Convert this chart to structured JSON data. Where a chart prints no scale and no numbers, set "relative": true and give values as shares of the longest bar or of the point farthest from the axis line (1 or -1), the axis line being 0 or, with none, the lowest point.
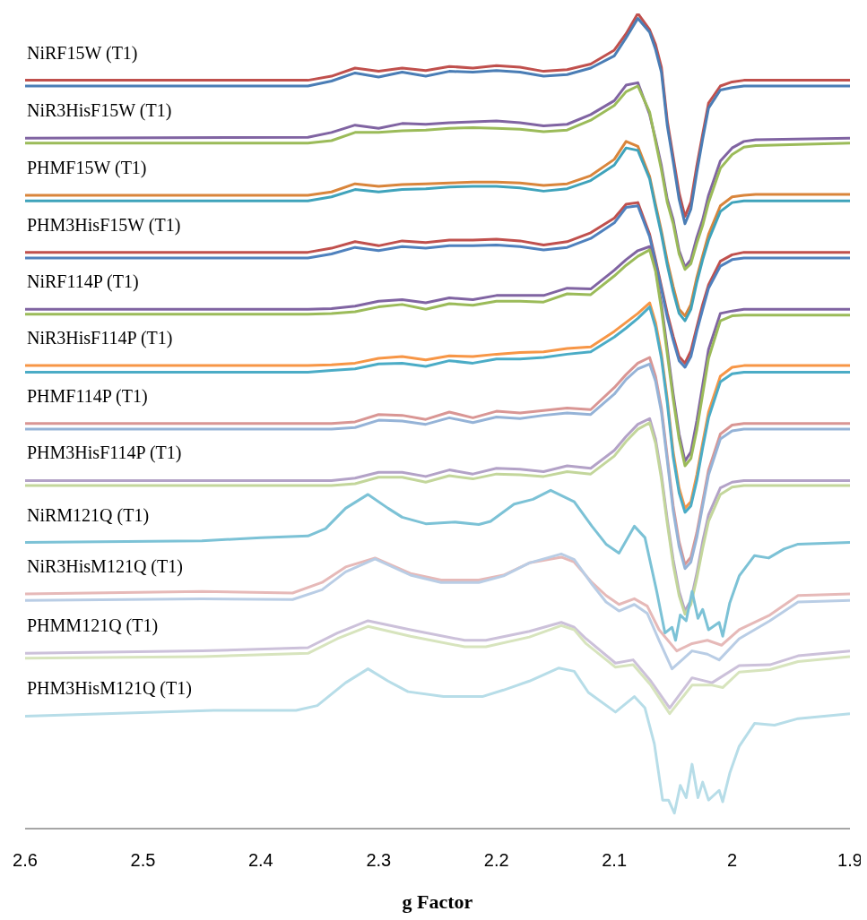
{
  "chart_data": {
    "type": "line",
    "relative": true,
    "xlabel": "g Factor",
    "xlim": [
      2.6,
      1.9
    ],
    "xticks": [
      2.6,
      2.5,
      2.4,
      2.3,
      2.2,
      2.1,
      2,
      1.9
    ],
    "x": [
      2.6,
      2.36,
      2.34,
      2.32,
      2.3,
      2.28,
      2.26,
      2.24,
      2.22,
      2.2,
      2.18,
      2.16,
      2.14,
      2.12,
      2.1,
      2.09,
      2.08,
      2.07,
      2.065,
      2.06,
      2.055,
      2.05,
      2.045,
      2.04,
      2.035,
      2.03,
      2.025,
      2.02,
      2.01,
      2.0,
      1.99,
      1.98,
      1.9
    ],
    "series": [
      {
        "color": "#c0504d",
        "values": [
          0.918,
          0.918,
          0.923,
          0.933,
          0.929,
          0.933,
          0.93,
          0.935,
          0.933,
          0.936,
          0.934,
          0.929,
          0.931,
          0.938,
          0.955,
          0.975,
          1,
          0.98,
          0.962,
          0.934,
          0.868,
          0.824,
          0.78,
          0.751,
          0.769,
          0.813,
          0.852,
          0.89,
          0.911,
          0.916,
          0.918,
          0.918,
          0.918
        ]
      },
      {
        "color": "#4a7db5",
        "values": [
          0.911,
          0.911,
          0.917,
          0.927,
          0.922,
          0.928,
          0.923,
          0.929,
          0.928,
          0.93,
          0.928,
          0.923,
          0.925,
          0.933,
          0.948,
          0.97,
          0.994,
          0.977,
          0.956,
          0.928,
          0.862,
          0.818,
          0.772,
          0.742,
          0.76,
          0.805,
          0.846,
          0.884,
          0.906,
          0.909,
          0.911,
          0.911,
          0.911
        ]
      },
      {
        "color": "#8064a2",
        "values": [
          0.847,
          0.848,
          0.854,
          0.863,
          0.859,
          0.865,
          0.864,
          0.866,
          0.867,
          0.868,
          0.866,
          0.862,
          0.864,
          0.876,
          0.893,
          0.912,
          0.915,
          0.876,
          0.846,
          0.813,
          0.772,
          0.747,
          0.709,
          0.689,
          0.698,
          0.725,
          0.747,
          0.777,
          0.819,
          0.835,
          0.843,
          0.845,
          0.847
        ]
      },
      {
        "color": "#9bbb59",
        "values": [
          0.841,
          0.841,
          0.844,
          0.854,
          0.854,
          0.856,
          0.857,
          0.859,
          0.86,
          0.859,
          0.858,
          0.855,
          0.857,
          0.869,
          0.887,
          0.904,
          0.911,
          0.879,
          0.843,
          0.808,
          0.768,
          0.742,
          0.705,
          0.686,
          0.693,
          0.718,
          0.74,
          0.768,
          0.81,
          0.827,
          0.836,
          0.838,
          0.841
        ]
      },
      {
        "color": "#d9853b",
        "values": [
          0.777,
          0.777,
          0.781,
          0.791,
          0.788,
          0.79,
          0.791,
          0.792,
          0.793,
          0.793,
          0.792,
          0.789,
          0.791,
          0.801,
          0.821,
          0.843,
          0.837,
          0.8,
          0.766,
          0.733,
          0.696,
          0.665,
          0.637,
          0.629,
          0.643,
          0.676,
          0.703,
          0.729,
          0.764,
          0.775,
          0.777,
          0.778,
          0.778
        ]
      },
      {
        "color": "#3fa3bb",
        "values": [
          0.77,
          0.77,
          0.775,
          0.784,
          0.781,
          0.784,
          0.785,
          0.787,
          0.788,
          0.788,
          0.786,
          0.782,
          0.785,
          0.795,
          0.814,
          0.835,
          0.832,
          0.797,
          0.762,
          0.729,
          0.691,
          0.659,
          0.632,
          0.623,
          0.637,
          0.67,
          0.698,
          0.722,
          0.757,
          0.768,
          0.77,
          0.77,
          0.77
        ]
      },
      {
        "color": "#c0504d",
        "values": [
          0.707,
          0.707,
          0.712,
          0.72,
          0.715,
          0.721,
          0.719,
          0.722,
          0.722,
          0.723,
          0.721,
          0.716,
          0.72,
          0.731,
          0.749,
          0.766,
          0.768,
          0.729,
          0.698,
          0.665,
          0.632,
          0.604,
          0.579,
          0.571,
          0.586,
          0.615,
          0.643,
          0.667,
          0.696,
          0.704,
          0.707,
          0.707,
          0.707
        ]
      },
      {
        "color": "#4f81bd",
        "values": [
          0.7,
          0.7,
          0.705,
          0.713,
          0.709,
          0.714,
          0.712,
          0.715,
          0.715,
          0.716,
          0.714,
          0.71,
          0.713,
          0.724,
          0.743,
          0.762,
          0.764,
          0.726,
          0.695,
          0.662,
          0.627,
          0.599,
          0.574,
          0.566,
          0.579,
          0.61,
          0.637,
          0.663,
          0.69,
          0.698,
          0.7,
          0.7,
          0.7
        ]
      },
      {
        "color": "#8064a2",
        "values": [
          0.637,
          0.637,
          0.638,
          0.641,
          0.647,
          0.649,
          0.645,
          0.651,
          0.649,
          0.654,
          0.654,
          0.654,
          0.663,
          0.662,
          0.685,
          0.698,
          0.709,
          0.714,
          0.687,
          0.643,
          0.588,
          0.533,
          0.484,
          0.451,
          0.462,
          0.5,
          0.544,
          0.588,
          0.632,
          0.635,
          0.637,
          0.637,
          0.637
        ]
      },
      {
        "color": "#9bbb59",
        "values": [
          0.631,
          0.631,
          0.632,
          0.634,
          0.64,
          0.643,
          0.637,
          0.644,
          0.642,
          0.647,
          0.647,
          0.646,
          0.656,
          0.655,
          0.678,
          0.691,
          0.702,
          0.71,
          0.684,
          0.637,
          0.582,
          0.527,
          0.478,
          0.445,
          0.454,
          0.489,
          0.533,
          0.577,
          0.623,
          0.629,
          0.63,
          0.63,
          0.63
        ]
      },
      {
        "color": "#f79646",
        "values": [
          0.568,
          0.568,
          0.569,
          0.571,
          0.577,
          0.579,
          0.575,
          0.58,
          0.579,
          0.582,
          0.584,
          0.585,
          0.589,
          0.591,
          0.61,
          0.621,
          0.632,
          0.645,
          0.621,
          0.582,
          0.527,
          0.462,
          0.418,
          0.393,
          0.401,
          0.434,
          0.473,
          0.511,
          0.555,
          0.566,
          0.568,
          0.568,
          0.568
        ]
      },
      {
        "color": "#4bacc6",
        "values": [
          0.56,
          0.56,
          0.562,
          0.564,
          0.57,
          0.571,
          0.567,
          0.574,
          0.571,
          0.576,
          0.576,
          0.578,
          0.582,
          0.585,
          0.603,
          0.614,
          0.626,
          0.64,
          0.615,
          0.577,
          0.522,
          0.456,
          0.412,
          0.388,
          0.396,
          0.427,
          0.467,
          0.504,
          0.548,
          0.558,
          0.56,
          0.56,
          0.56
        ]
      },
      {
        "color": "#d99694",
        "values": [
          0.497,
          0.497,
          0.497,
          0.499,
          0.508,
          0.507,
          0.502,
          0.511,
          0.504,
          0.512,
          0.51,
          0.513,
          0.516,
          0.514,
          0.541,
          0.557,
          0.571,
          0.578,
          0.555,
          0.516,
          0.456,
          0.396,
          0.352,
          0.324,
          0.333,
          0.363,
          0.401,
          0.44,
          0.484,
          0.495,
          0.497,
          0.497,
          0.497
        ]
      },
      {
        "color": "#95b3d7",
        "values": [
          0.49,
          0.49,
          0.49,
          0.492,
          0.501,
          0.5,
          0.496,
          0.504,
          0.498,
          0.505,
          0.503,
          0.507,
          0.51,
          0.508,
          0.533,
          0.551,
          0.564,
          0.57,
          0.549,
          0.511,
          0.451,
          0.39,
          0.346,
          0.319,
          0.327,
          0.357,
          0.396,
          0.434,
          0.478,
          0.488,
          0.49,
          0.49,
          0.49
        ]
      },
      {
        "color": "#b3a2c7",
        "values": [
          0.427,
          0.427,
          0.427,
          0.43,
          0.437,
          0.437,
          0.432,
          0.44,
          0.435,
          0.442,
          0.441,
          0.438,
          0.445,
          0.442,
          0.464,
          0.481,
          0.496,
          0.503,
          0.478,
          0.434,
          0.379,
          0.33,
          0.291,
          0.267,
          0.28,
          0.313,
          0.352,
          0.385,
          0.418,
          0.425,
          0.427,
          0.427,
          0.427
        ]
      },
      {
        "color": "#c3d69b",
        "values": [
          0.421,
          0.421,
          0.421,
          0.423,
          0.431,
          0.431,
          0.425,
          0.433,
          0.429,
          0.435,
          0.434,
          0.432,
          0.438,
          0.435,
          0.457,
          0.475,
          0.49,
          0.498,
          0.473,
          0.429,
          0.374,
          0.324,
          0.286,
          0.263,
          0.275,
          0.307,
          0.344,
          0.377,
          0.41,
          0.419,
          0.421,
          0.421,
          0.421
        ]
      },
      {
        "color": "#7cc2d6",
        "x": [
          2.6,
          2.45,
          2.4,
          2.36,
          2.345,
          2.328,
          2.309,
          2.292,
          2.28,
          2.26,
          2.235,
          2.215,
          2.205,
          2.185,
          2.169,
          2.154,
          2.134,
          2.119,
          2.107,
          2.096,
          2.083,
          2.074,
          2.064,
          2.057,
          2.051,
          2.048,
          2.044,
          2.039,
          2.034,
          2.029,
          2.025,
          2.02,
          2.011,
          2.008,
          2.002,
          1.994,
          1.981,
          1.969,
          1.956,
          1.944,
          1.9
        ],
        "values": [
          0.351,
          0.353,
          0.357,
          0.359,
          0.368,
          0.393,
          0.41,
          0.393,
          0.382,
          0.374,
          0.376,
          0.373,
          0.377,
          0.398,
          0.404,
          0.415,
          0.401,
          0.371,
          0.349,
          0.338,
          0.371,
          0.357,
          0.291,
          0.24,
          0.247,
          0.231,
          0.262,
          0.255,
          0.291,
          0.258,
          0.269,
          0.244,
          0.253,
          0.236,
          0.277,
          0.31,
          0.335,
          0.332,
          0.343,
          0.349,
          0.351
        ]
      },
      {
        "color": "#e6b9b8",
        "x": [
          2.6,
          2.45,
          2.373,
          2.348,
          2.328,
          2.303,
          2.273,
          2.247,
          2.215,
          2.194,
          2.172,
          2.145,
          2.134,
          2.119,
          2.107,
          2.096,
          2.083,
          2.072,
          2.062,
          2.047,
          2.034,
          2.021,
          2.009,
          1.994,
          1.968,
          1.944,
          1.9
        ],
        "values": [
          0.288,
          0.291,
          0.289,
          0.302,
          0.321,
          0.332,
          0.313,
          0.305,
          0.305,
          0.311,
          0.326,
          0.333,
          0.327,
          0.302,
          0.286,
          0.275,
          0.282,
          0.273,
          0.244,
          0.218,
          0.227,
          0.231,
          0.225,
          0.244,
          0.262,
          0.286,
          0.288
        ]
      },
      {
        "color": "#b9cde5",
        "x": [
          2.6,
          2.45,
          2.373,
          2.348,
          2.328,
          2.303,
          2.273,
          2.247,
          2.215,
          2.194,
          2.172,
          2.145,
          2.134,
          2.119,
          2.107,
          2.096,
          2.083,
          2.072,
          2.062,
          2.051,
          2.034,
          2.021,
          2.011,
          1.994,
          1.968,
          1.944,
          1.9
        ],
        "values": [
          0.28,
          0.282,
          0.281,
          0.293,
          0.315,
          0.331,
          0.311,
          0.302,
          0.302,
          0.31,
          0.326,
          0.337,
          0.33,
          0.3,
          0.278,
          0.267,
          0.275,
          0.264,
          0.231,
          0.196,
          0.218,
          0.214,
          0.207,
          0.233,
          0.255,
          0.278,
          0.28
        ]
      },
      {
        "color": "#ccc1da",
        "x": [
          2.6,
          2.45,
          2.36,
          2.335,
          2.309,
          2.273,
          2.227,
          2.209,
          2.172,
          2.145,
          2.134,
          2.124,
          2.099,
          2.084,
          2.069,
          2.053,
          2.034,
          2.017,
          1.994,
          1.968,
          1.944,
          1.9
        ],
        "values": [
          0.215,
          0.218,
          0.222,
          0.24,
          0.255,
          0.244,
          0.231,
          0.231,
          0.242,
          0.253,
          0.247,
          0.233,
          0.203,
          0.207,
          0.181,
          0.148,
          0.185,
          0.179,
          0.2,
          0.201,
          0.212,
          0.218
        ]
      },
      {
        "color": "#d7e4bd",
        "x": [
          2.6,
          2.45,
          2.36,
          2.335,
          2.309,
          2.273,
          2.227,
          2.209,
          2.172,
          2.145,
          2.134,
          2.124,
          2.099,
          2.084,
          2.069,
          2.053,
          2.034,
          2.017,
          2.008,
          1.994,
          1.968,
          1.944,
          1.9
        ],
        "values": [
          0.209,
          0.211,
          0.215,
          0.233,
          0.248,
          0.236,
          0.223,
          0.223,
          0.235,
          0.249,
          0.244,
          0.227,
          0.198,
          0.201,
          0.176,
          0.141,
          0.176,
          0.176,
          0.173,
          0.192,
          0.195,
          0.205,
          0.211
        ]
      },
      {
        "color": "#b7dde8",
        "x": [
          2.6,
          2.44,
          2.37,
          2.352,
          2.328,
          2.309,
          2.292,
          2.275,
          2.245,
          2.212,
          2.194,
          2.172,
          2.147,
          2.134,
          2.122,
          2.099,
          2.083,
          2.074,
          2.066,
          2.059,
          2.054,
          2.049,
          2.044,
          2.039,
          2.034,
          2.029,
          2.025,
          2.02,
          2.011,
          2.008,
          2.002,
          1.994,
          1.981,
          1.964,
          1.944,
          1.9
        ],
        "values": [
          0.138,
          0.145,
          0.145,
          0.151,
          0.179,
          0.196,
          0.181,
          0.168,
          0.162,
          0.162,
          0.17,
          0.181,
          0.197,
          0.193,
          0.167,
          0.143,
          0.162,
          0.148,
          0.104,
          0.035,
          0.035,
          0.019,
          0.053,
          0.038,
          0.079,
          0.038,
          0.057,
          0.035,
          0.047,
          0.033,
          0.068,
          0.101,
          0.129,
          0.127,
          0.135,
          0.141
        ]
      }
    ],
    "annotations": [
      {
        "text": "NiRF15W (T1)",
        "y": 0.918
      },
      {
        "text": "NiR3HisF15W (T1)",
        "y": 0.847
      },
      {
        "text": "PHMF15W (T1)",
        "y": 0.777
      },
      {
        "text": "PHM3HisF15W (T1)",
        "y": 0.707
      },
      {
        "text": "NiRF114P (T1)",
        "y": 0.637
      },
      {
        "text": "NiR3HisF114P (T1)",
        "y": 0.568
      },
      {
        "text": "PHMF114P (T1)",
        "y": 0.497
      },
      {
        "text": "PHM3HisF114P (T1)",
        "y": 0.427
      },
      {
        "text": "NiRM121Q (T1)",
        "y": 0.351
      },
      {
        "text": "NiR3HisM121Q (T1)",
        "y": 0.288
      },
      {
        "text": "PHMM121Q (T1)",
        "y": 0.215
      },
      {
        "text": "PHM3HisM121Q (T1)",
        "y": 0.138
      }
    ]
  }
}
